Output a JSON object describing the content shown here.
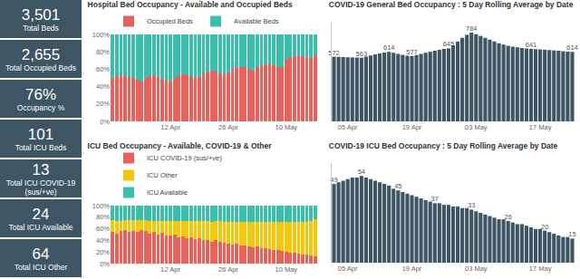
{
  "kpis": [
    {
      "value": "3,501",
      "label": "Total Beds"
    },
    {
      "value": "2,655",
      "label": "Total Occupied Beds"
    },
    {
      "value": "76%",
      "label": "Occupancy %"
    },
    {
      "value": "101",
      "label": "Total ICU Beds"
    },
    {
      "value": "13",
      "label": "Total ICU COVID-19 (sus/+ve)"
    },
    {
      "value": "24",
      "label": "Total ICU Available"
    },
    {
      "value": "64",
      "label": "Total ICU Other"
    }
  ],
  "chart_data": [
    {
      "type": "bar",
      "title": "Hospital Bed Occupancy - Available and Occupied Beds",
      "categories": [
        null,
        null,
        null,
        null,
        null,
        null,
        null,
        null,
        null,
        null,
        null,
        null,
        null,
        null,
        "12 Apr",
        null,
        null,
        null,
        null,
        null,
        null,
        null,
        null,
        null,
        null,
        null,
        null,
        null,
        "26 Apr",
        null,
        null,
        null,
        null,
        null,
        null,
        null,
        null,
        null,
        null,
        null,
        null,
        null,
        "10 May",
        null,
        null,
        null,
        null,
        null,
        null,
        null
      ],
      "series": [
        {
          "name": "Occupied Beds",
          "color": "#e8625c",
          "values": [
            50,
            52,
            53,
            52,
            51,
            50,
            48,
            46,
            50,
            52,
            53,
            51,
            49,
            47,
            46,
            50,
            53,
            54,
            53,
            52,
            50,
            51,
            55,
            57,
            58,
            57,
            55,
            54,
            56,
            60,
            62,
            63,
            62,
            60,
            58,
            62,
            65,
            66,
            67,
            65,
            63,
            62,
            71,
            74,
            75,
            76,
            75,
            74,
            73,
            76
          ]
        },
        {
          "name": "Available Beds",
          "color": "#3bbfad",
          "values": [
            50,
            48,
            47,
            48,
            49,
            50,
            52,
            54,
            50,
            48,
            47,
            49,
            51,
            53,
            54,
            50,
            47,
            46,
            47,
            48,
            50,
            49,
            45,
            43,
            42,
            43,
            45,
            46,
            44,
            40,
            38,
            37,
            38,
            40,
            42,
            38,
            35,
            34,
            33,
            35,
            37,
            38,
            29,
            26,
            25,
            24,
            25,
            26,
            27,
            24
          ]
        }
      ],
      "stacked": true,
      "legend": "top left",
      "grid": false,
      "ylim": [
        0,
        100
      ],
      "yticks": [
        {
          "value": 0,
          "label": "0%"
        },
        {
          "value": 20,
          "label": "20%"
        },
        {
          "value": 40,
          "label": "40%"
        },
        {
          "value": 60,
          "label": "60%"
        },
        {
          "value": 80,
          "label": "80%"
        },
        {
          "value": 100,
          "label": "100%"
        }
      ]
    },
    {
      "type": "bar",
      "title": "COVID-19 General Bed Occupancy : 5 Day Rolling Average by Date",
      "categories": [
        null,
        null,
        null,
        "05 Apr",
        null,
        null,
        null,
        null,
        null,
        null,
        null,
        null,
        null,
        null,
        null,
        null,
        null,
        "19 Apr",
        null,
        null,
        null,
        null,
        null,
        null,
        null,
        null,
        null,
        null,
        null,
        null,
        null,
        "03 May",
        null,
        null,
        null,
        null,
        null,
        null,
        null,
        null,
        null,
        null,
        null,
        null,
        null,
        "17 May",
        null,
        null,
        null,
        null,
        null,
        null,
        null
      ],
      "values": [
        572,
        570,
        568,
        566,
        565,
        564,
        563,
        572,
        582,
        592,
        600,
        608,
        614,
        606,
        596,
        588,
        580,
        577,
        586,
        596,
        606,
        615,
        624,
        632,
        640,
        645,
        672,
        705,
        738,
        765,
        784,
        770,
        755,
        738,
        722,
        706,
        690,
        678,
        668,
        660,
        654,
        648,
        644,
        641,
        638,
        636,
        633,
        630,
        627,
        624,
        620,
        617,
        614
      ],
      "value_labels": [
        "572",
        null,
        null,
        null,
        null,
        null,
        "563",
        null,
        null,
        null,
        null,
        null,
        "614",
        null,
        null,
        null,
        null,
        "577",
        null,
        null,
        null,
        null,
        null,
        null,
        null,
        "645",
        null,
        null,
        null,
        null,
        "784",
        null,
        null,
        null,
        null,
        null,
        null,
        null,
        null,
        null,
        null,
        null,
        null,
        "641",
        null,
        null,
        null,
        null,
        null,
        null,
        null,
        null,
        "614"
      ],
      "color": "#3e5563",
      "data_labels": true,
      "grid": false,
      "tick_labels": "x",
      "ylim": [
        0,
        880
      ]
    },
    {
      "type": "bar",
      "title": "ICU Bed Occupancy - Available, COVID-19 & Other",
      "categories": [
        null,
        null,
        null,
        null,
        null,
        null,
        null,
        null,
        null,
        null,
        null,
        null,
        null,
        null,
        "12 Apr",
        null,
        null,
        null,
        null,
        null,
        null,
        null,
        null,
        null,
        null,
        null,
        null,
        null,
        "26 Apr",
        null,
        null,
        null,
        null,
        null,
        null,
        null,
        null,
        null,
        null,
        null,
        null,
        null,
        "10 May",
        null,
        null,
        null,
        null,
        null,
        null,
        null
      ],
      "series": [
        {
          "name": "ICU COVID-19 (sus/+ve)",
          "color": "#e8625c",
          "values": [
            55,
            52,
            56,
            58,
            55,
            57,
            54,
            58,
            56,
            52,
            54,
            50,
            53,
            49,
            48,
            50,
            46,
            47,
            44,
            45,
            42,
            44,
            40,
            41,
            38,
            40,
            37,
            36,
            35,
            33,
            34,
            31,
            32,
            30,
            28,
            29,
            27,
            26,
            25,
            24,
            23,
            22,
            20,
            19,
            18,
            17,
            16,
            15,
            14,
            13
          ]
        },
        {
          "name": "ICU Other",
          "color": "#f2c80f",
          "values": [
            20,
            22,
            18,
            17,
            20,
            18,
            21,
            17,
            19,
            22,
            20,
            24,
            21,
            25,
            26,
            24,
            28,
            27,
            29,
            28,
            31,
            29,
            33,
            32,
            34,
            33,
            36,
            36,
            37,
            39,
            38,
            41,
            40,
            42,
            44,
            43,
            45,
            46,
            47,
            48,
            49,
            50,
            52,
            53,
            54,
            55,
            56,
            57,
            60,
            63
          ]
        },
        {
          "name": "ICU Available",
          "color": "#3bbfad",
          "values": [
            25,
            26,
            26,
            25,
            25,
            25,
            25,
            25,
            25,
            26,
            26,
            26,
            26,
            26,
            26,
            26,
            26,
            26,
            27,
            27,
            27,
            27,
            27,
            27,
            28,
            27,
            27,
            28,
            28,
            28,
            28,
            28,
            28,
            28,
            28,
            28,
            28,
            28,
            28,
            28,
            28,
            28,
            28,
            28,
            28,
            28,
            28,
            28,
            26,
            24
          ]
        }
      ],
      "stacked": true,
      "legend": "top left",
      "grid": false,
      "ylim": [
        0,
        100
      ],
      "yticks": [
        {
          "value": 0,
          "label": "0%"
        },
        {
          "value": 20,
          "label": "20%"
        },
        {
          "value": 40,
          "label": "40%"
        },
        {
          "value": 60,
          "label": "60%"
        },
        {
          "value": 80,
          "label": "80%"
        },
        {
          "value": 100,
          "label": "100%"
        }
      ]
    },
    {
      "type": "bar",
      "title": "COVID-19 ICU Bed Occupancy : 5 Day Rolling Average by Date",
      "categories": [
        null,
        null,
        null,
        "05 Apr",
        null,
        null,
        null,
        null,
        null,
        null,
        null,
        null,
        null,
        null,
        null,
        null,
        null,
        "19 Apr",
        null,
        null,
        null,
        null,
        null,
        null,
        null,
        null,
        null,
        null,
        null,
        null,
        null,
        "03 May",
        null,
        null,
        null,
        null,
        null,
        null,
        null,
        null,
        null,
        null,
        null,
        null,
        null,
        "17 May",
        null,
        null,
        null,
        null,
        null,
        null,
        null
      ],
      "values": [
        49,
        50,
        51,
        52,
        53,
        53,
        54,
        53,
        52,
        51,
        50,
        49,
        48,
        46,
        45,
        44,
        43,
        42,
        41,
        40,
        39,
        38,
        37,
        37,
        36,
        36,
        35,
        35,
        34,
        34,
        33,
        32,
        31,
        30,
        29,
        28,
        27,
        27,
        26,
        25,
        24,
        24,
        23,
        22,
        21,
        21,
        20,
        19,
        18,
        17,
        16,
        16,
        15
      ],
      "value_labels": [
        "49",
        null,
        null,
        null,
        null,
        null,
        "54",
        null,
        null,
        null,
        null,
        null,
        null,
        null,
        "45",
        null,
        null,
        null,
        null,
        null,
        null,
        null,
        "37",
        null,
        null,
        null,
        null,
        null,
        null,
        null,
        "33",
        null,
        null,
        null,
        null,
        null,
        null,
        null,
        "26",
        null,
        null,
        null,
        null,
        null,
        null,
        null,
        "20",
        null,
        null,
        null,
        null,
        null,
        "15"
      ],
      "color": "#3e5563",
      "data_labels": true,
      "grid": false,
      "tick_labels": "x",
      "ylim": [
        0,
        62
      ]
    }
  ]
}
